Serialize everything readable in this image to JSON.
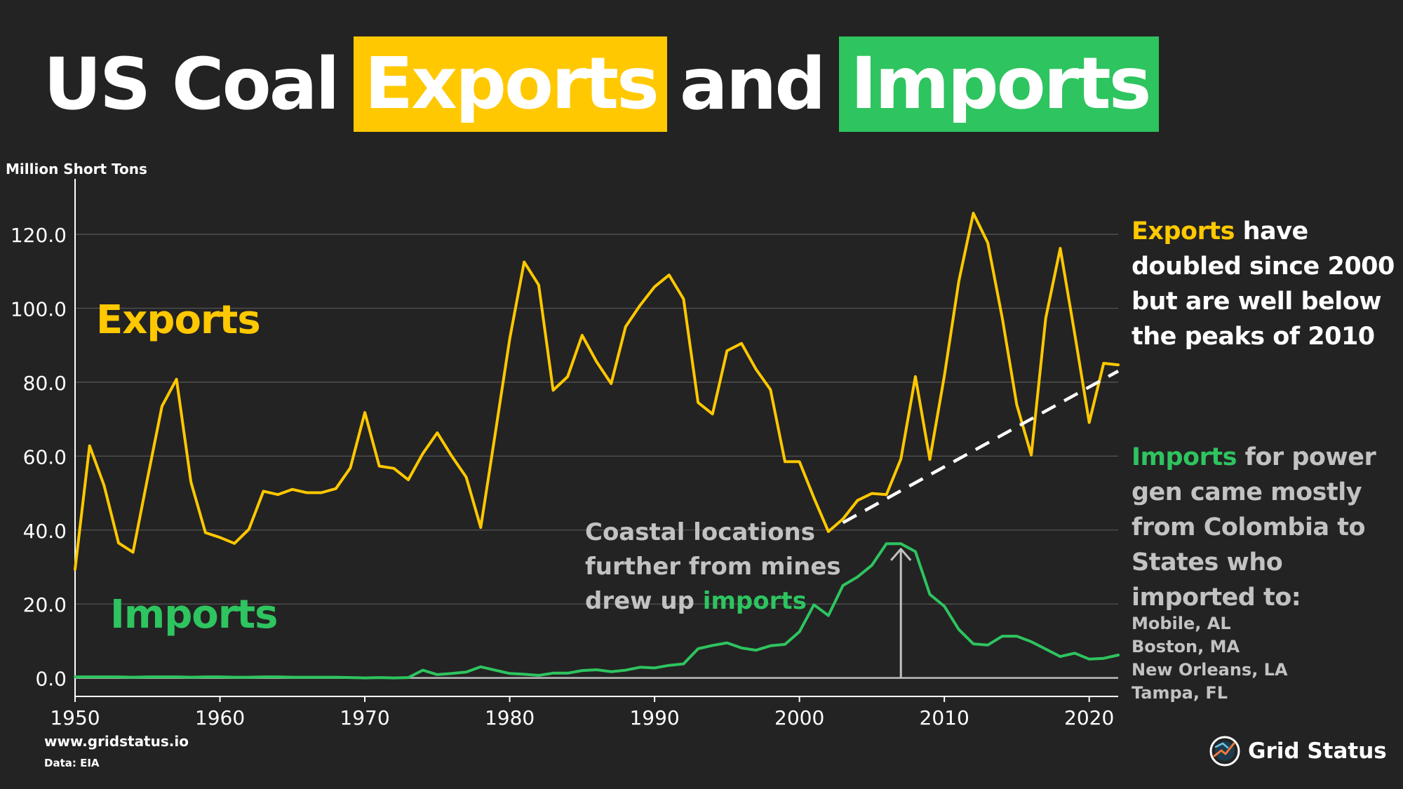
{
  "title": {
    "part1": "US Coal",
    "exports_word": "Exports",
    "and_word": "and",
    "imports_word": "Imports"
  },
  "colors": {
    "background": "#232323",
    "exports": "#ffc800",
    "imports": "#2ec45f",
    "grid": "#555555",
    "axis_text": "#ffffff",
    "muted": "#c2c2c2"
  },
  "chart_data": {
    "type": "line",
    "ylabel": "Million Short Tons",
    "xlim": [
      1950,
      2022
    ],
    "ylim": [
      -5,
      135
    ],
    "x_ticks": [
      1950,
      1960,
      1970,
      1980,
      1990,
      2000,
      2010,
      2020
    ],
    "y_ticks": [
      "0.0",
      "20.0",
      "40.0",
      "60.0",
      "80.0",
      "100.0",
      "120.0"
    ],
    "grid": "horizontal",
    "x": [
      1950,
      1951,
      1952,
      1953,
      1954,
      1955,
      1956,
      1957,
      1958,
      1959,
      1960,
      1961,
      1962,
      1963,
      1964,
      1965,
      1966,
      1967,
      1968,
      1969,
      1970,
      1971,
      1972,
      1973,
      1974,
      1975,
      1976,
      1977,
      1978,
      1979,
      1980,
      1981,
      1982,
      1983,
      1984,
      1985,
      1986,
      1987,
      1988,
      1989,
      1990,
      1991,
      1992,
      1993,
      1994,
      1995,
      1996,
      1997,
      1998,
      1999,
      2000,
      2001,
      2002,
      2003,
      2004,
      2005,
      2006,
      2007,
      2008,
      2009,
      2010,
      2011,
      2012,
      2013,
      2014,
      2015,
      2016,
      2017,
      2018,
      2019,
      2020,
      2021,
      2022
    ],
    "series": [
      {
        "name": "Exports",
        "color": "#ffc800",
        "values": [
          29.4,
          62.8,
          52.1,
          36.5,
          34.0,
          54.0,
          73.5,
          80.8,
          53.0,
          39.3,
          38.0,
          36.4,
          40.2,
          50.5,
          49.6,
          51.0,
          50.1,
          50.1,
          51.2,
          56.8,
          71.8,
          57.3,
          56.7,
          53.6,
          60.7,
          66.3,
          60.0,
          54.3,
          40.7,
          66.0,
          91.7,
          112.5,
          106.3,
          77.8,
          81.5,
          92.7,
          85.5,
          79.6,
          95.0,
          100.8,
          105.8,
          109.0,
          102.5,
          74.5,
          71.4,
          88.5,
          90.5,
          83.5,
          78.0,
          58.5,
          58.5,
          48.7,
          39.6,
          43.0,
          48.0,
          49.9,
          49.6,
          59.2,
          81.5,
          59.1,
          81.7,
          107.3,
          125.7,
          117.7,
          97.3,
          73.9,
          60.3,
          97.3,
          116.2,
          93.1,
          69.1,
          85.1,
          84.7
        ]
      },
      {
        "name": "Imports",
        "color": "#2ec45f",
        "values": [
          0.3,
          0.3,
          0.3,
          0.3,
          0.2,
          0.3,
          0.3,
          0.3,
          0.2,
          0.3,
          0.3,
          0.2,
          0.2,
          0.3,
          0.3,
          0.2,
          0.2,
          0.2,
          0.2,
          0.1,
          0.0,
          0.1,
          0.0,
          0.1,
          2.1,
          0.9,
          1.2,
          1.6,
          3.0,
          2.1,
          1.2,
          1.0,
          0.7,
          1.3,
          1.3,
          2.0,
          2.2,
          1.7,
          2.1,
          2.9,
          2.7,
          3.4,
          3.8,
          7.9,
          8.8,
          9.5,
          8.1,
          7.5,
          8.7,
          9.1,
          12.5,
          19.8,
          16.9,
          25.0,
          27.3,
          30.5,
          36.3,
          36.3,
          34.2,
          22.6,
          19.4,
          13.1,
          9.2,
          8.9,
          11.3,
          11.3,
          9.8,
          7.8,
          5.8,
          6.7,
          5.1,
          5.3,
          6.2
        ]
      }
    ],
    "annotations": {
      "exports_label": "Exports",
      "imports_label": "Imports",
      "coastal_line1": "Coastal locations",
      "coastal_line2": "further from mines",
      "coastal_line3_prefix": "drew up ",
      "coastal_line3_highlight": "imports",
      "trend_line": {
        "from": [
          2003,
          42
        ],
        "to": [
          2022,
          83
        ]
      },
      "arrow": {
        "x": 2007,
        "from_y": 0,
        "to_y": 36
      }
    }
  },
  "notes": {
    "exports": {
      "highlight": "Exports",
      "text": " have doubled since 2000 but are well below the peaks of 2010"
    },
    "imports": {
      "highlight": "Imports",
      "text": " for power gen came mostly from Colombia to States who imported to:"
    },
    "cities": [
      "Mobile, AL",
      "Boston, MA",
      "New Orleans, LA",
      "Tampa, FL"
    ]
  },
  "footer": {
    "url": "www.gridstatus.io",
    "source": "Data: EIA",
    "brand": "Grid Status"
  }
}
